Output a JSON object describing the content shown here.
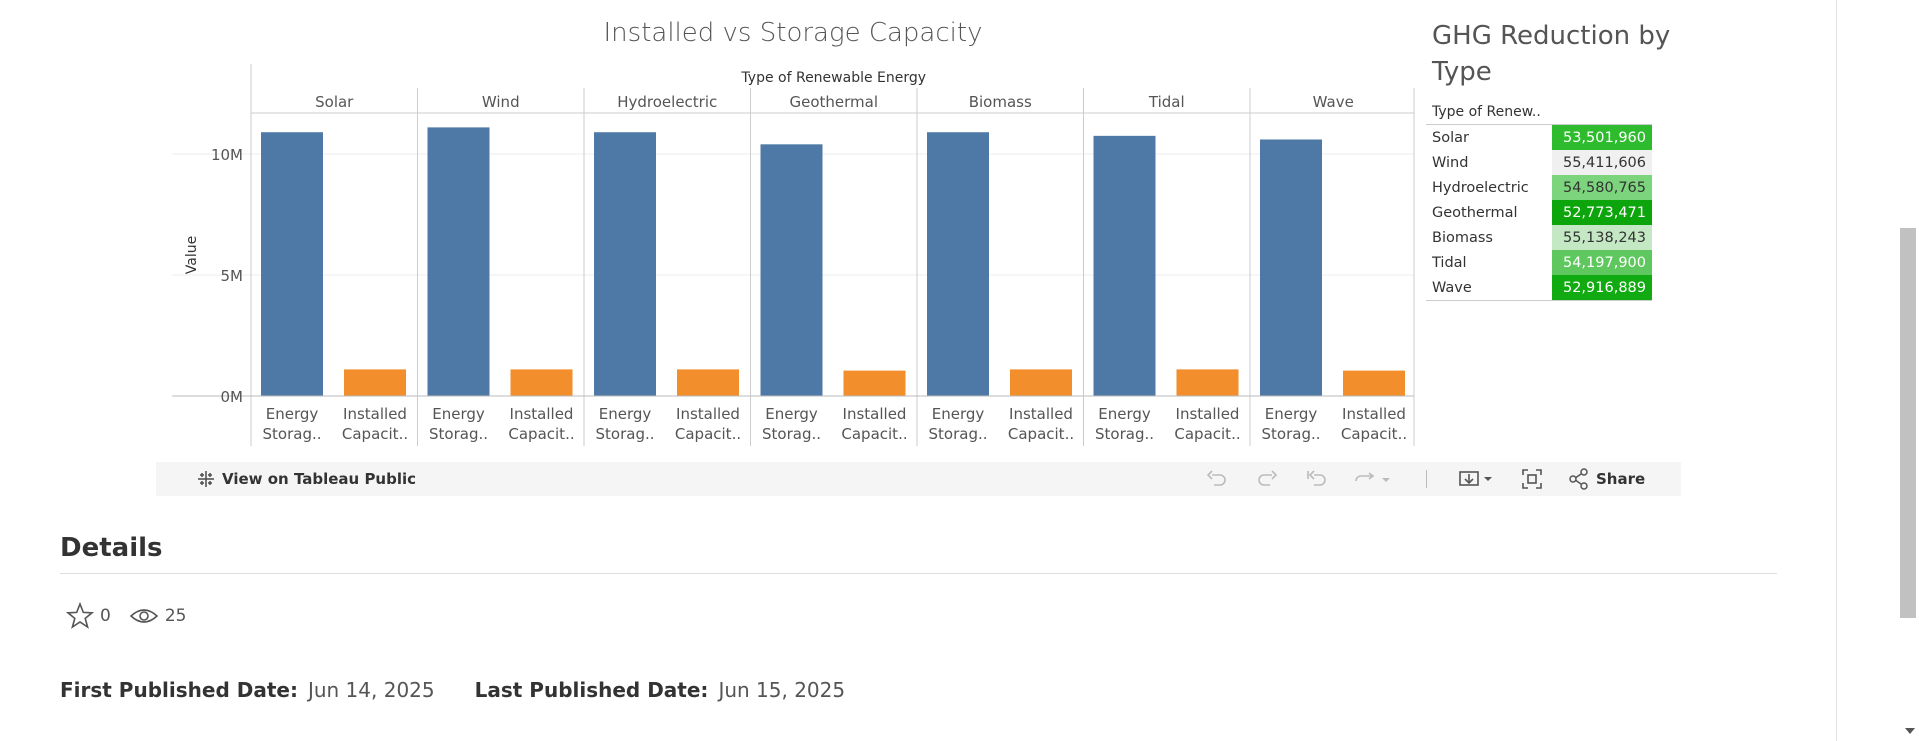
{
  "chart_data": [
    {
      "type": "bar",
      "title": "Installed vs Storage Capacity",
      "column_header": "Type of Renewable Energy",
      "ylabel": "Value",
      "ylim": [
        0,
        12000000
      ],
      "yticks": [
        "10M",
        "5M",
        "0M"
      ],
      "ytick_values": [
        10000000,
        5000000,
        0
      ],
      "categories": [
        "Solar",
        "Wind",
        "Hydroelectric",
        "Geothermal",
        "Biomass",
        "Tidal",
        "Wave"
      ],
      "bar_labels": [
        "Energy Storag..",
        "Installed Capacit.."
      ],
      "series": [
        {
          "name": "Energy Storag..",
          "color": "#4e79a7",
          "values": [
            10900000,
            11100000,
            10900000,
            10400000,
            10900000,
            10750000,
            10600000
          ]
        },
        {
          "name": "Installed Capacit..",
          "color": "#f28e2b",
          "values": [
            1100000,
            1100000,
            1100000,
            1050000,
            1100000,
            1100000,
            1050000
          ]
        }
      ]
    },
    {
      "type": "table",
      "title": "GHG Reduction by Type",
      "column_header": "Type of Renew..",
      "rows": [
        {
          "label": "Solar",
          "value": "53,501,960",
          "color": "#2ebc2e"
        },
        {
          "label": "Wind",
          "value": "55,411,606",
          "color": "#f0f0f0"
        },
        {
          "label": "Hydroelectric",
          "value": "54,580,765",
          "color": "#7cd47c"
        },
        {
          "label": "Geothermal",
          "value": "52,773,471",
          "color": "#0ca50c"
        },
        {
          "label": "Biomass",
          "value": "55,138,243",
          "color": "#c3e8c3"
        },
        {
          "label": "Tidal",
          "value": "54,197,900",
          "color": "#5ec85e"
        },
        {
          "label": "Wave",
          "value": "52,916,889",
          "color": "#11aa11"
        }
      ]
    }
  ],
  "toolbar": {
    "view_label": "View on Tableau Public",
    "share_label": "Share"
  },
  "details": {
    "title": "Details",
    "favorites": "0",
    "views": "25",
    "first_published_label": "First Published Date:",
    "first_published_value": "Jun 14, 2025",
    "last_published_label": "Last Published Date:",
    "last_published_value": "Jun 15, 2025"
  }
}
